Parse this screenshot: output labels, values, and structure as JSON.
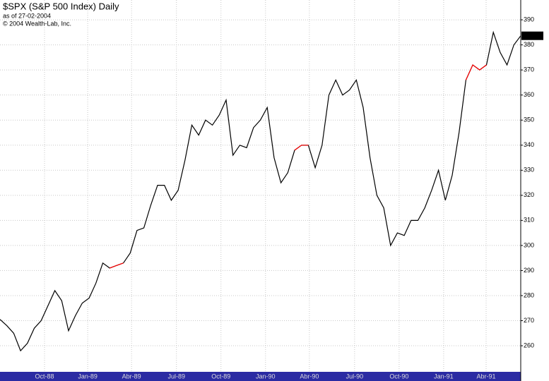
{
  "chart_data": {
    "type": "line",
    "title": "$SPX (S&P 500 Index) Daily",
    "subtitle": "as of 27-02-2004",
    "annotation": "© 2004 Wealth-Lab, Inc.",
    "x": [
      0,
      2,
      4,
      6,
      8,
      10,
      12,
      14,
      16,
      18,
      20,
      22,
      24,
      26,
      28,
      30,
      32,
      34,
      36,
      38,
      40,
      42,
      44,
      46,
      48,
      50,
      52,
      54,
      56,
      58,
      60,
      62,
      64,
      66,
      68,
      70,
      72,
      74,
      76,
      78,
      80,
      82,
      84,
      86,
      88,
      90,
      92,
      94,
      96,
      98,
      100,
      102,
      104,
      106,
      108,
      110,
      112,
      114,
      116,
      118,
      120,
      122,
      124,
      126,
      128,
      130,
      132,
      134,
      136,
      138,
      140,
      142,
      144,
      146,
      148,
      150,
      152
    ],
    "series": [
      {
        "color": "#000000",
        "values": [
          270.5,
          268,
          265,
          258,
          261,
          267,
          270,
          276,
          282,
          278,
          266,
          272,
          277,
          279,
          285,
          293,
          291,
          292,
          293,
          297,
          306,
          307,
          316,
          324,
          324,
          318,
          322,
          334,
          348,
          344,
          350,
          348,
          352,
          358,
          336,
          340,
          339,
          347,
          350,
          355,
          335,
          325,
          329,
          338,
          340,
          340,
          331,
          340,
          360,
          366,
          360,
          362,
          366,
          355,
          335,
          320,
          315,
          300,
          305,
          304,
          310,
          310,
          315,
          322,
          330,
          318,
          328,
          345,
          366,
          372,
          370,
          372,
          385,
          377,
          372,
          380,
          383.63
        ]
      },
      {
        "color": "#ff0000",
        "values": [
          null,
          null,
          null,
          null,
          null,
          null,
          null,
          null,
          null,
          null,
          null,
          null,
          null,
          null,
          null,
          null,
          291,
          292,
          293,
          null,
          null,
          null,
          null,
          null,
          null,
          null,
          null,
          null,
          null,
          null,
          null,
          null,
          null,
          null,
          null,
          null,
          null,
          null,
          null,
          null,
          null,
          null,
          null,
          338,
          340,
          340,
          null,
          null,
          null,
          null,
          null,
          null,
          null,
          null,
          null,
          null,
          null,
          null,
          null,
          null,
          null,
          null,
          null,
          null,
          null,
          null,
          null,
          null,
          366,
          372,
          370,
          372,
          null,
          null,
          null,
          null,
          null
        ]
      }
    ],
    "xlim": [
      0,
      152
    ],
    "xticks": [
      {
        "value": 13,
        "label": "Oct-88"
      },
      {
        "value": 25.6,
        "label": "Jan-89"
      },
      {
        "value": 38.4,
        "label": "Abr-89"
      },
      {
        "value": 51.5,
        "label": "Jul-89"
      },
      {
        "value": 64.5,
        "label": "Oct-89"
      },
      {
        "value": 77.5,
        "label": "Jan-90"
      },
      {
        "value": 90.3,
        "label": "Abr-90"
      },
      {
        "value": 103.5,
        "label": "Jul-90"
      },
      {
        "value": 116.5,
        "label": "Oct-90"
      },
      {
        "value": 129.5,
        "label": "Jan-91"
      },
      {
        "value": 141.9,
        "label": "Abr-91"
      }
    ],
    "ylim": [
      249.6,
      397.9
    ],
    "yticks": [
      260,
      270,
      280,
      290,
      300,
      310,
      320,
      330,
      340,
      350,
      360,
      370,
      380,
      390
    ],
    "grid": true
  }
}
